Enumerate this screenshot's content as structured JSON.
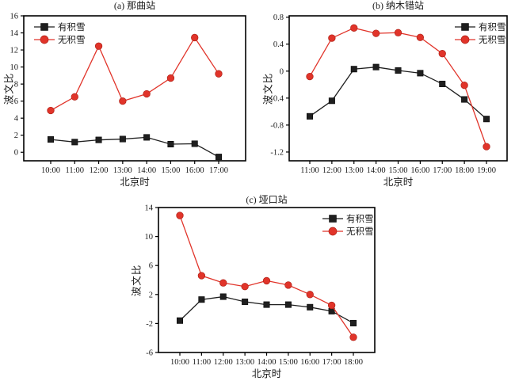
{
  "page": {
    "background": "#ffffff"
  },
  "colors": {
    "with_snow": "#1f1f1f",
    "no_snow": "#e1342a",
    "axis": "#000000"
  },
  "chart_data": [
    {
      "id": "a",
      "type": "line",
      "title": "(a) 那曲站",
      "xlabel": "北京时",
      "ylabel": "波文比",
      "categories": [
        "10:00",
        "11:00",
        "12:00",
        "13:00",
        "14:00",
        "15:00",
        "16:00",
        "17:00"
      ],
      "series": [
        {
          "name": "有积雪",
          "marker": "square",
          "color": "#1f1f1f",
          "values": [
            1.5,
            1.2,
            1.45,
            1.55,
            1.75,
            0.95,
            1.0,
            -0.55
          ]
        },
        {
          "name": "无积雪",
          "marker": "circle",
          "color": "#e1342a",
          "values": [
            4.9,
            6.5,
            12.45,
            6.0,
            6.85,
            8.7,
            13.45,
            9.2
          ]
        }
      ],
      "ylim": [
        -1.0,
        16
      ],
      "ytick_labels": [
        "0",
        "2",
        "4",
        "6",
        "8",
        "10",
        "12",
        "14",
        "16"
      ],
      "legend_pos": "top-left",
      "grid": false
    },
    {
      "id": "b",
      "type": "line",
      "title": "(b) 纳木错站",
      "xlabel": "北京时",
      "ylabel": "波文比",
      "categories": [
        "11:00",
        "12:00",
        "13:00",
        "14:00",
        "15:00",
        "16:00",
        "17:00",
        "18:00",
        "19:00"
      ],
      "series": [
        {
          "name": "有积雪",
          "marker": "square",
          "color": "#1f1f1f",
          "values": [
            -0.67,
            -0.44,
            0.03,
            0.06,
            0.01,
            -0.03,
            -0.19,
            -0.42,
            -0.71
          ]
        },
        {
          "name": "无积雪",
          "marker": "circle",
          "color": "#e1342a",
          "values": [
            -0.08,
            0.49,
            0.64,
            0.56,
            0.57,
            0.5,
            0.26,
            -0.21,
            -1.12
          ]
        }
      ],
      "ylim": [
        -1.33,
        0.82
      ],
      "ytick_labels": [
        "-1.2",
        "-0.8",
        "-0.4",
        "0",
        "0.4",
        "0.8"
      ],
      "legend_pos": "top-right",
      "grid": false
    },
    {
      "id": "c",
      "type": "line",
      "title": "(c) 垭口站",
      "xlabel": "北京时",
      "ylabel": "波文比",
      "categories": [
        "10:00",
        "11:00",
        "12:00",
        "13:00",
        "14:00",
        "15:00",
        "16:00",
        "17:00",
        "18:00"
      ],
      "series": [
        {
          "name": "有积雪",
          "marker": "square",
          "color": "#1f1f1f",
          "values": [
            -1.6,
            1.3,
            1.7,
            1.0,
            0.6,
            0.6,
            0.25,
            -0.3,
            -1.95
          ]
        },
        {
          "name": "无积雪",
          "marker": "circle",
          "color": "#e1342a",
          "values": [
            12.9,
            4.6,
            3.6,
            3.1,
            3.9,
            3.3,
            2.0,
            0.5,
            -3.9
          ]
        }
      ],
      "ylim": [
        -6,
        14
      ],
      "ytick_labels": [
        "-6",
        "-2",
        "2",
        "6",
        "10",
        "14"
      ],
      "legend_pos": "top-right",
      "grid": false
    }
  ]
}
